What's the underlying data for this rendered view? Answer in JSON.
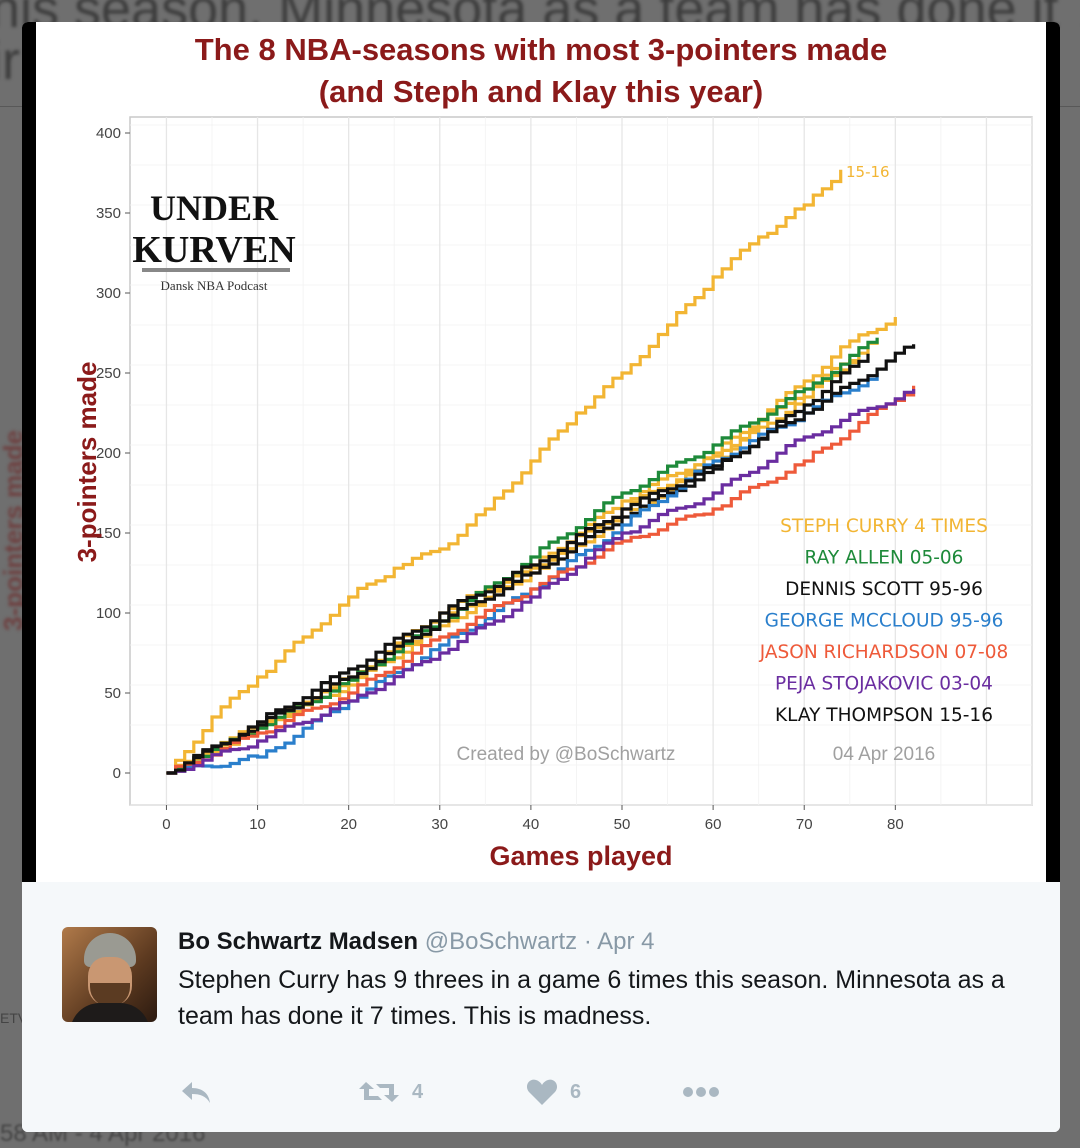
{
  "background": {
    "line1": "his season. Minnesota as a team has done it 7",
    "line2": "ir",
    "side_text": "3-pointers made",
    "bottom_text": "58 AM - 4 Apr 2016",
    "side_small": "ETV"
  },
  "chart_data": {
    "type": "line",
    "title_line1": "The 8 NBA-seasons with most 3-pointers made",
    "title_line2": "(and Steph and Klay this year)",
    "xlabel": "Games played",
    "ylabel": "3-pointers made",
    "xlim": [
      -4,
      95
    ],
    "ylim": [
      -20,
      410
    ],
    "xticks": [
      0,
      10,
      20,
      30,
      40,
      50,
      60,
      70,
      80
    ],
    "yticks": [
      0,
      50,
      100,
      150,
      200,
      250,
      300,
      350,
      400
    ],
    "grid": true,
    "annotation": "15-16",
    "logo": {
      "line1": "UNDER",
      "line2": "KURVEN",
      "tagline": "Dansk NBA Podcast"
    },
    "credit": "Created by @BoSchwartz",
    "date": "04 Apr 2016",
    "legend_position": "bottom-right",
    "legend": [
      {
        "label": "STEPH CURRY 4 TIMES",
        "color": "#f2b533"
      },
      {
        "label": "RAY ALLEN 05-06",
        "color": "#1e8a3a"
      },
      {
        "label": "DENNIS SCOTT 95-96",
        "color": "#111111"
      },
      {
        "label": "GEORGE MCCLOUD 95-96",
        "color": "#2a7fcc"
      },
      {
        "label": "JASON RICHARDSON 07-08",
        "color": "#ee5a3a"
      },
      {
        "label": "PEJA STOJAKOVIC 03-04",
        "color": "#6a2da0"
      },
      {
        "label": "KLAY THOMPSON 15-16",
        "color": "#111111"
      }
    ],
    "series": [
      {
        "name": "15-16",
        "color": "#f2b533",
        "x": [
          0,
          5,
          10,
          15,
          20,
          25,
          30,
          35,
          40,
          45,
          50,
          55,
          60,
          65,
          70,
          74
        ],
        "y": [
          0,
          35,
          60,
          85,
          110,
          128,
          140,
          165,
          195,
          225,
          250,
          280,
          310,
          335,
          355,
          377
        ]
      },
      {
        "color": "#f2b533",
        "x": [
          0,
          10,
          20,
          30,
          40,
          50,
          60,
          70,
          75,
          80
        ],
        "y": [
          0,
          30,
          60,
          100,
          130,
          170,
          200,
          245,
          270,
          285
        ]
      },
      {
        "color": "#f2b533",
        "x": [
          0,
          10,
          20,
          30,
          40,
          50,
          60,
          70,
          76
        ],
        "y": [
          0,
          28,
          58,
          95,
          128,
          165,
          198,
          240,
          262
        ]
      },
      {
        "color": "#f2b533",
        "x": [
          0,
          10,
          20,
          30,
          40,
          50,
          60,
          70,
          78
        ],
        "y": [
          0,
          30,
          55,
          92,
          125,
          160,
          195,
          235,
          272
        ]
      },
      {
        "color": "#1e8a3a",
        "x": [
          0,
          10,
          20,
          30,
          40,
          50,
          60,
          70,
          78
        ],
        "y": [
          0,
          28,
          58,
          95,
          135,
          175,
          205,
          240,
          272
        ]
      },
      {
        "color": "#111111",
        "x": [
          0,
          10,
          20,
          30,
          40,
          50,
          60,
          70,
          77
        ],
        "y": [
          0,
          30,
          60,
          95,
          125,
          160,
          190,
          230,
          262
        ]
      },
      {
        "color": "#2a7fcc",
        "x": [
          0,
          10,
          20,
          30,
          40,
          50,
          60,
          70,
          78
        ],
        "y": [
          0,
          10,
          45,
          80,
          115,
          155,
          195,
          225,
          250
        ]
      },
      {
        "color": "#ee5a3a",
        "x": [
          0,
          10,
          20,
          30,
          40,
          50,
          60,
          70,
          82
        ],
        "y": [
          0,
          25,
          50,
          85,
          115,
          145,
          165,
          195,
          242
        ]
      },
      {
        "color": "#6a2da0",
        "x": [
          0,
          10,
          20,
          30,
          40,
          50,
          60,
          70,
          82
        ],
        "y": [
          0,
          20,
          45,
          75,
          110,
          150,
          175,
          210,
          240
        ]
      },
      {
        "color": "#111111",
        "x": [
          0,
          10,
          20,
          30,
          40,
          50,
          60,
          70,
          82
        ],
        "y": [
          0,
          32,
          65,
          100,
          130,
          165,
          192,
          225,
          268
        ]
      }
    ]
  },
  "tweet": {
    "name": "Bo Schwartz Madsen",
    "handle": "@BoSchwartz",
    "separator": "·",
    "date": "Apr 4",
    "text": "Stephen Curry has 9 threes in a game 6 times this season. Minnesota as a team has done it 7 times. This is madness.",
    "retweet_count": "4",
    "like_count": "6"
  },
  "icons": [
    "reply-icon",
    "retweet-icon",
    "like-icon",
    "more-icon"
  ]
}
